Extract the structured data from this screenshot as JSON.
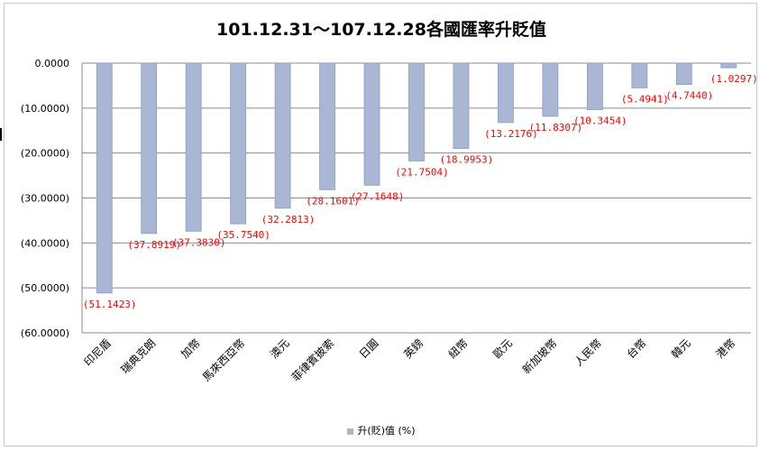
{
  "chart_data": {
    "type": "bar",
    "title": "101.12.31～107.12.28各國匯率升貶值",
    "categories": [
      "印尼盾",
      "瑞典克朗",
      "加幣",
      "馬來西亞幣",
      "澳元",
      "菲律賓披索",
      "日圓",
      "英鎊",
      "紐幣",
      "歐元",
      "新加坡幣",
      "人民幣",
      "台幣",
      "韓元",
      "港幣"
    ],
    "series": [
      {
        "name": "升(貶)值 (%)",
        "values": [
          -51.1423,
          -37.8919,
          -37.383,
          -35.754,
          -32.2813,
          -28.1601,
          -27.1648,
          -21.7504,
          -18.9953,
          -13.2176,
          -11.8307,
          -10.3454,
          -5.4941,
          -4.744,
          -1.0297
        ],
        "labels": [
          "(51.1423)",
          "(37.8919)",
          "(37.3830)",
          "(35.7540)",
          "(32.2813)",
          "(28.1601)",
          "(27.1648)",
          "(21.7504)",
          "(18.9953)",
          "(13.2176)",
          "(11.8307)",
          "(10.3454)",
          "(5.4941)",
          "(4.7440)",
          "(1.0297)"
        ]
      }
    ],
    "yticks": [
      0,
      -10,
      -20,
      -30,
      -40,
      -50,
      -60
    ],
    "ytick_labels": [
      "0.0000",
      "(10.0000)",
      "(20.0000)",
      "(30.0000)",
      "(40.0000)",
      "(50.0000)",
      "(60.0000)"
    ],
    "ylim": [
      -60,
      0
    ],
    "grid": true,
    "legend_position": "bottom",
    "colors": {
      "bar_fill": "#a9b6d4",
      "bar_edge": "#8d9cc0",
      "label": "#ff0000",
      "grid": "#8c8c8c"
    }
  }
}
